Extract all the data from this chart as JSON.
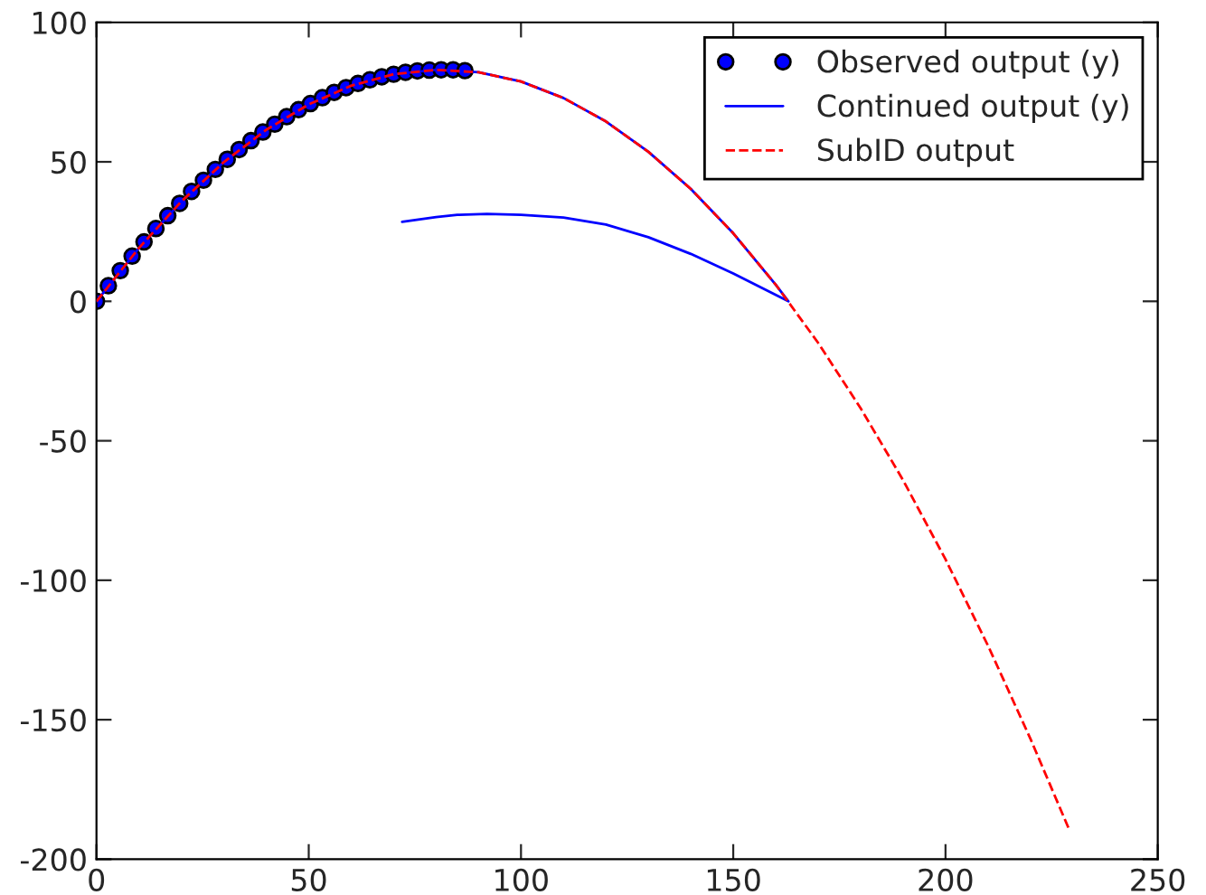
{
  "chart_data": {
    "type": "line",
    "xlim": [
      0,
      250
    ],
    "ylim": [
      -200,
      100
    ],
    "xticks": [
      0,
      50,
      100,
      150,
      200,
      250
    ],
    "yticks": [
      -200,
      -150,
      -100,
      -50,
      0,
      50,
      100
    ],
    "grid": false,
    "legend": "top right",
    "series": [
      {
        "name": "Observed output (y)",
        "type": "scatter",
        "marker": "circle",
        "color": "#0000ff",
        "x": [
          0,
          2.8,
          5.6,
          8.4,
          11.2,
          14,
          16.8,
          19.6,
          22.4,
          25.2,
          28,
          30.8,
          33.6,
          36.4,
          39.2,
          42,
          44.8,
          47.6,
          50.4,
          53.2,
          56,
          58.8,
          61.6,
          64.4,
          67.2,
          70,
          72.8,
          75.6,
          78.4,
          81.2,
          84,
          86.8
        ],
        "values": [
          0,
          5.6,
          11,
          16.2,
          21.3,
          26.1,
          30.7,
          35.1,
          39.4,
          43.4,
          47.3,
          50.9,
          54.4,
          57.6,
          60.7,
          63.5,
          66.2,
          68.7,
          70.9,
          73,
          74.9,
          76.6,
          78.1,
          79.4,
          80.5,
          81.4,
          82.1,
          82.6,
          82.9,
          83,
          83,
          82.7
        ]
      },
      {
        "name": "Continued output (y)",
        "line_style": "solid",
        "color": "#0000ff",
        "x": [
          0,
          10,
          20,
          30,
          40,
          50,
          60,
          70,
          80,
          90,
          100,
          110,
          120,
          130,
          140,
          150,
          160,
          163,
          150,
          140,
          130,
          120,
          110,
          100,
          92,
          85,
          80,
          72
        ],
        "values": [
          0,
          19.1,
          35.8,
          49.9,
          61.5,
          70.6,
          77.3,
          81.4,
          83,
          82.1,
          78.8,
          72.9,
          64.5,
          53.6,
          40.3,
          24.4,
          6,
          0,
          10,
          17,
          23,
          27.5,
          30,
          31,
          31.3,
          31,
          30.2,
          28.5
        ]
      },
      {
        "name": "SubID output",
        "line_style": "dashed",
        "color": "#ff0000",
        "x": [
          0,
          10,
          20,
          30,
          40,
          50,
          60,
          70,
          80,
          90,
          100,
          110,
          120,
          130,
          140,
          150,
          160,
          170,
          180,
          190,
          200,
          210,
          220,
          229
        ],
        "values": [
          0,
          19.1,
          35.8,
          49.9,
          61.5,
          70.6,
          77.3,
          81.4,
          83,
          82.1,
          78.8,
          72.9,
          64.5,
          53.6,
          40.3,
          24.4,
          6,
          -14.9,
          -38.3,
          -64.1,
          -92.5,
          -123.4,
          -156.8,
          -188.9
        ]
      }
    ]
  }
}
